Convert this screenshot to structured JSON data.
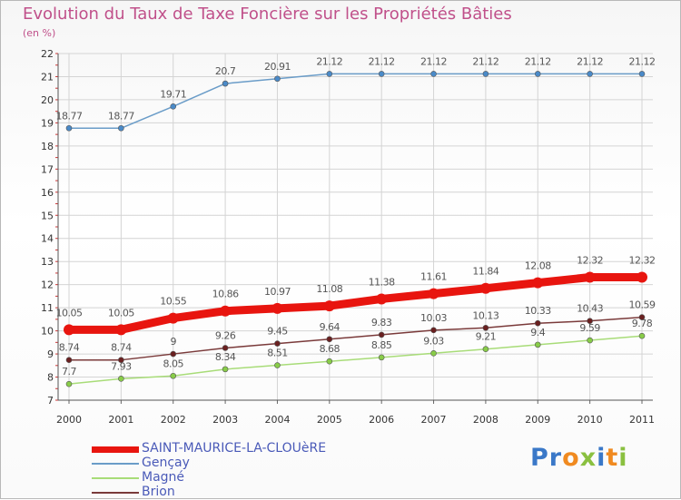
{
  "title": "Evolution du Taux de Taxe Foncière sur les Propriétés Bâties",
  "unit_label": "(en %)",
  "logo_text": "Proxiti",
  "chart_data": {
    "type": "line",
    "categories": [
      "2000",
      "2001",
      "2002",
      "2003",
      "2004",
      "2005",
      "2006",
      "2007",
      "2008",
      "2009",
      "2010",
      "2011"
    ],
    "ylim": [
      7,
      22
    ],
    "yticks": [
      "7",
      "8",
      "9",
      "10",
      "11",
      "12",
      "13",
      "14",
      "15",
      "16",
      "17",
      "18",
      "19",
      "20",
      "21",
      "22"
    ],
    "grid": true,
    "legend_position": "bottom-left",
    "series": [
      {
        "name": "SAINT-MAURICE-LA-CLOUèRE",
        "color": "#e8150f",
        "marker_color": "#e8150f",
        "label_color": "#555555",
        "values": [
          10.05,
          10.05,
          10.55,
          10.86,
          10.97,
          11.08,
          11.38,
          11.61,
          11.84,
          12.08,
          12.32,
          12.32
        ],
        "labels": [
          "10.05",
          "10.05",
          "10.55",
          "10.86",
          "10.97",
          "11.08",
          "11.38",
          "11.61",
          "11.84",
          "12.08",
          "12.32",
          "12.32"
        ]
      },
      {
        "name": "Gençay",
        "color": "#6a9cc8",
        "marker_color": "#4a8ac8",
        "label_color": "#555555",
        "values": [
          18.77,
          18.77,
          19.71,
          20.7,
          20.91,
          21.12,
          21.12,
          21.12,
          21.12,
          21.12,
          21.12,
          21.12
        ],
        "labels": [
          "18.77",
          "18.77",
          "19.71",
          "20.7",
          "20.91",
          "21.12",
          "21.12",
          "21.12",
          "21.12",
          "21.12",
          "21.12",
          "21.12"
        ]
      },
      {
        "name": "Magné",
        "color": "#a8dc78",
        "marker_color": "#88cc48",
        "label_color": "#555555",
        "values": [
          7.7,
          7.93,
          8.05,
          8.34,
          8.51,
          8.68,
          8.85,
          9.03,
          9.21,
          9.4,
          9.59,
          9.78
        ],
        "labels": [
          "7.7",
          "7.93",
          "8.05",
          "8.34",
          "8.51",
          "8.68",
          "8.85",
          "9.03",
          "9.21",
          "9.4",
          "9.59",
          "9.78"
        ]
      },
      {
        "name": "Brion",
        "color": "#7a3a3a",
        "marker_color": "#6a2020",
        "label_color": "#555555",
        "values": [
          8.74,
          8.74,
          9,
          9.26,
          9.45,
          9.64,
          9.83,
          10.03,
          10.13,
          10.33,
          10.43,
          10.59
        ],
        "labels": [
          "8.74",
          "8.74",
          "9",
          "9.26",
          "9.45",
          "9.64",
          "9.83",
          "10.03",
          "10.13",
          "10.33",
          "10.43",
          "10.59"
        ]
      }
    ]
  }
}
